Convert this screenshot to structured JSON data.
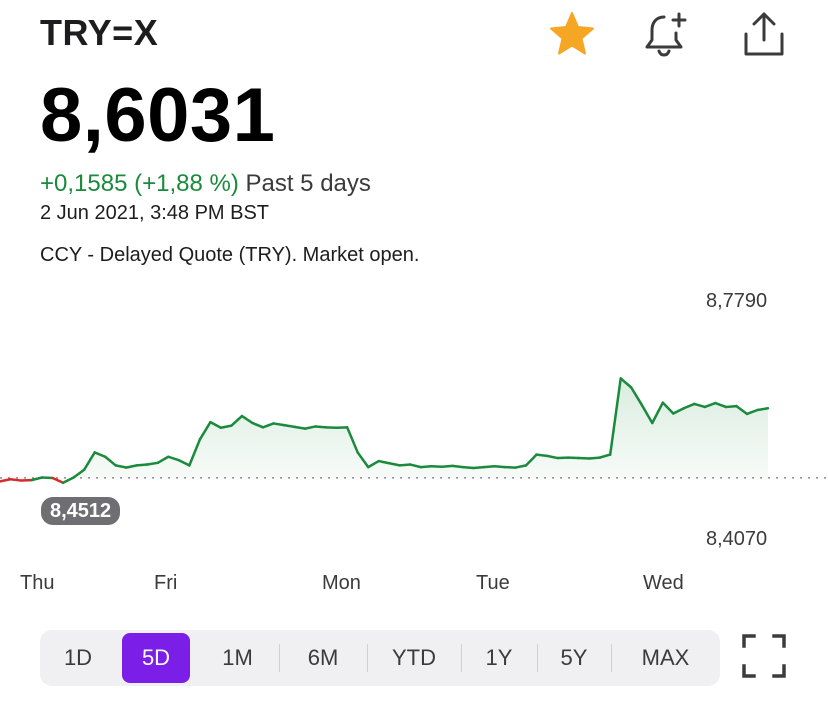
{
  "header": {
    "ticker": "TRY=X",
    "icons": {
      "watchlist": "star-icon",
      "alert": "bell-plus-icon",
      "share": "share-icon"
    },
    "star_color": "#f5a623"
  },
  "quote": {
    "price": "8,6031",
    "change": "+0,1585 (+1,88 %)",
    "period": "Past 5 days",
    "timestamp": "2 Jun 2021, 3:48 PM BST",
    "info": "CCY - Delayed Quote (TRY). Market open.",
    "positive_color": "#1a8a3c"
  },
  "chart_data": {
    "type": "line",
    "y_max_label": "8,7790",
    "y_min_label": "8,4070",
    "previous_close_label": "8,4512",
    "ylim": [
      8.407,
      8.779
    ],
    "previous_close": 8.4512,
    "x_labels": [
      "Thu",
      "Fri",
      "Mon",
      "Tue",
      "Wed"
    ],
    "line_color": "#1a8a3c",
    "below_close_color": "#d62b2b",
    "series": [
      {
        "values": [
          8.443,
          8.448,
          8.445,
          8.446,
          8.452,
          8.451,
          8.44,
          8.452,
          8.47,
          8.51,
          8.5,
          8.48,
          8.475,
          8.48,
          8.482,
          8.486,
          8.5,
          8.492,
          8.48,
          8.54,
          8.58,
          8.567,
          8.572,
          8.594,
          8.578,
          8.568,
          8.577,
          8.573,
          8.569,
          8.565,
          8.57,
          8.568,
          8.567,
          8.568,
          8.51,
          8.476,
          8.49,
          8.485,
          8.48,
          8.482,
          8.476,
          8.478,
          8.477,
          8.479,
          8.476,
          8.474,
          8.476,
          8.478,
          8.476,
          8.475,
          8.48,
          8.505,
          8.502,
          8.497,
          8.498,
          8.497,
          8.496,
          8.498,
          8.505,
          8.681,
          8.66,
          8.62,
          8.578,
          8.625,
          8.6,
          8.612,
          8.622,
          8.615,
          8.624,
          8.615,
          8.617,
          8.599,
          8.608,
          8.612
        ]
      }
    ]
  },
  "ranges": {
    "items": [
      "1D",
      "5D",
      "1M",
      "6M",
      "YTD",
      "1Y",
      "5Y",
      "MAX"
    ],
    "active": "5D",
    "active_color": "#7b1ee8"
  },
  "fullscreen_icon": "fullscreen-icon"
}
